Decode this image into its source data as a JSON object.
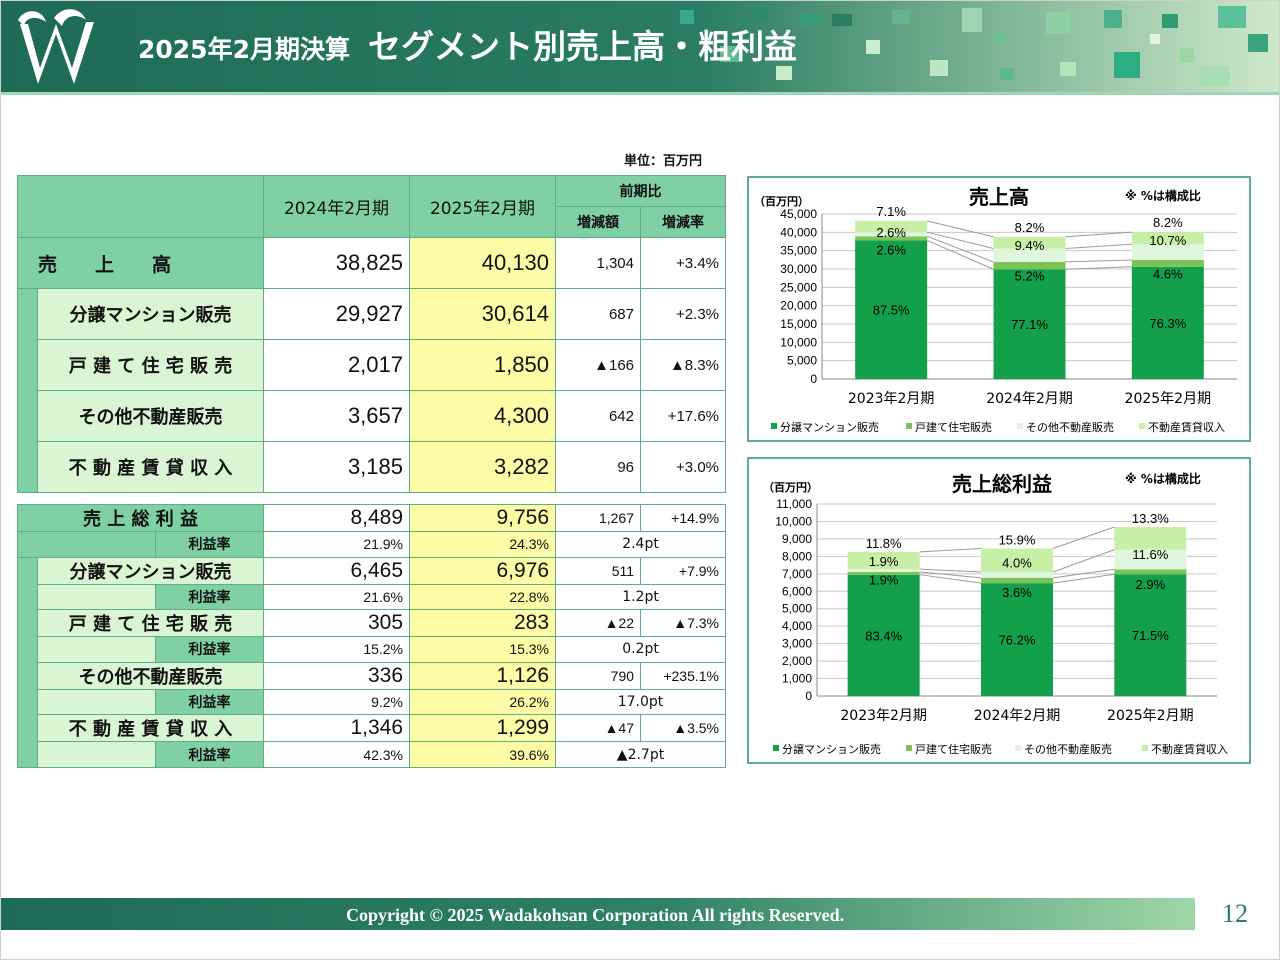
{
  "header": {
    "title_sub": "2025年2月期決算",
    "title_main": "セグメント別売上高・粗利益"
  },
  "unit": "単位：百万円",
  "top_table": {
    "col_2024": "2024年2月期",
    "col_2025": "2025年2月期",
    "col_prev": "前期比",
    "col_diff": "増減額",
    "col_rate": "増減率",
    "rows": [
      {
        "label": "売　　上　　高",
        "v2024": "38,825",
        "v2025": "40,130",
        "diff": "1,304",
        "rate": "+3.4%"
      },
      {
        "label": "分譲マンション販売",
        "v2024": "29,927",
        "v2025": "30,614",
        "diff": "687",
        "rate": "+2.3%"
      },
      {
        "label": "戸 建 て 住 宅 販 売",
        "v2024": "2,017",
        "v2025": "1,850",
        "diff": "▲166",
        "rate": "▲8.3%"
      },
      {
        "label": "その他不動産販売",
        "v2024": "3,657",
        "v2025": "4,300",
        "diff": "642",
        "rate": "+17.6%"
      },
      {
        "label": "不 動 産 賃 貸 収 入",
        "v2024": "3,185",
        "v2025": "3,282",
        "diff": "96",
        "rate": "+3.0%"
      }
    ]
  },
  "bottom_table": {
    "margin_label": "利益率",
    "rows": [
      {
        "label": "売 上 総 利 益",
        "v2024": "8,489",
        "v2025": "9,756",
        "diff": "1,267",
        "rate": "+14.9%",
        "m2024": "21.9%",
        "m2025": "24.3%",
        "mdiff": "2.4pt"
      },
      {
        "label": "分譲マンション販売",
        "v2024": "6,465",
        "v2025": "6,976",
        "diff": "511",
        "rate": "+7.9%",
        "m2024": "21.6%",
        "m2025": "22.8%",
        "mdiff": "1.2pt"
      },
      {
        "label": "戸 建 て 住 宅 販 売",
        "v2024": "305",
        "v2025": "283",
        "diff": "▲22",
        "rate": "▲7.3%",
        "m2024": "15.2%",
        "m2025": "15.3%",
        "mdiff": "0.2pt"
      },
      {
        "label": "その他不動産販売",
        "v2024": "336",
        "v2025": "1,126",
        "diff": "790",
        "rate": "+235.1%",
        "m2024": "9.2%",
        "m2025": "26.2%",
        "mdiff": "17.0pt"
      },
      {
        "label": "不 動 産 賃 貸 収 入",
        "v2024": "1,346",
        "v2025": "1,299",
        "diff": "▲47",
        "rate": "▲3.5%",
        "m2024": "42.3%",
        "m2025": "39.6%",
        "mdiff": "▲2.7pt"
      }
    ]
  },
  "colors": {
    "mansion": "#14a04a",
    "house": "#7cc35a",
    "other": "#dff5dc",
    "rent": "#c7f0a6"
  },
  "chart_data": [
    {
      "type": "bar",
      "stacked": true,
      "title": "売上高",
      "note": "※  %は構成比",
      "ylabel": "（百万円）",
      "ylim": [
        0,
        45000
      ],
      "yticks": [
        0,
        5000,
        10000,
        15000,
        20000,
        25000,
        30000,
        35000,
        40000,
        45000
      ],
      "ytick_labels": [
        "0",
        "5,000",
        "10,000",
        "15,000",
        "20,000",
        "25,000",
        "30,000",
        "35,000",
        "40,000",
        "45,000"
      ],
      "grid": true,
      "legend_position": "bottom",
      "categories": [
        "2023年2月期",
        "2024年2月期",
        "2025年2月期"
      ],
      "series": [
        {
          "name": "分譲マンション販売",
          "values": [
            37800,
            29927,
            30614
          ],
          "labels": [
            "87.5%",
            "77.1%",
            "76.3%"
          ]
        },
        {
          "name": "戸建て住宅販売",
          "values": [
            1120,
            2017,
            1850
          ],
          "labels": [
            "2.6%",
            "5.2%",
            "4.6%"
          ]
        },
        {
          "name": "その他不動産販売",
          "values": [
            1120,
            3657,
            4300
          ],
          "labels": [
            "2.6%",
            "9.4%",
            "10.7%"
          ]
        },
        {
          "name": "不動産賃貸収入",
          "values": [
            3060,
            3185,
            3282
          ],
          "labels": [
            "7.1%",
            "8.2%",
            "8.2%"
          ]
        }
      ]
    },
    {
      "type": "bar",
      "stacked": true,
      "title": "売上総利益",
      "note": "※  %は構成比",
      "ylabel": "（百万円）",
      "ylim": [
        0,
        11000
      ],
      "yticks": [
        0,
        1000,
        2000,
        3000,
        4000,
        5000,
        6000,
        7000,
        8000,
        9000,
        10000,
        11000
      ],
      "ytick_labels": [
        "0",
        "1,000",
        "2,000",
        "3,000",
        "4,000",
        "5,000",
        "6,000",
        "7,000",
        "8,000",
        "9,000",
        "10,000",
        "11,000"
      ],
      "grid": true,
      "legend_position": "bottom",
      "categories": [
        "2023年2月期",
        "2024年2月期",
        "2025年2月期"
      ],
      "series": [
        {
          "name": "分譲マンション販売",
          "values": [
            6950,
            6465,
            6976
          ],
          "labels": [
            "83.4%",
            "76.2%",
            "71.5%"
          ]
        },
        {
          "name": "戸建て住宅販売",
          "values": [
            160,
            305,
            283
          ],
          "labels": [
            "1.9%",
            "3.6%",
            "2.9%"
          ]
        },
        {
          "name": "その他不動産販売",
          "values": [
            160,
            336,
            1126
          ],
          "labels": [
            "1.9%",
            "4.0%",
            "11.6%"
          ]
        },
        {
          "name": "不動産賃貸収入",
          "values": [
            985,
            1346,
            1299
          ],
          "labels": [
            "11.8%",
            "15.9%",
            "13.3%"
          ]
        }
      ]
    }
  ],
  "footer": {
    "copyright": "Copyright © 2025  Wadakohsan Corporation All rights Reserved.",
    "page": "12"
  }
}
